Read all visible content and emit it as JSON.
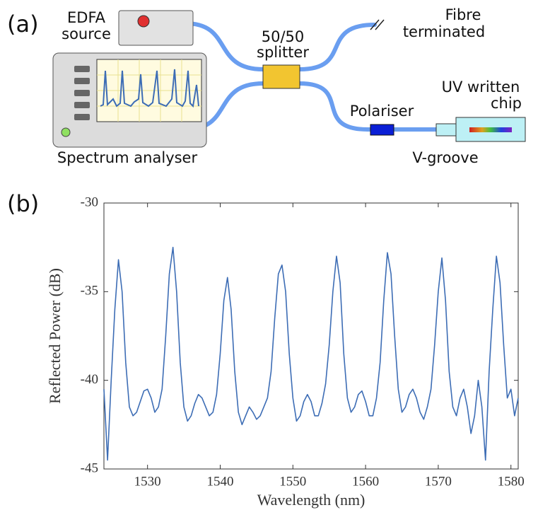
{
  "diagram": {
    "panel_label": "(a)",
    "edfa": [
      "EDFA",
      "source"
    ],
    "splitter": [
      "50/50",
      "splitter"
    ],
    "terminated": [
      "Fibre",
      "terminated"
    ],
    "chip": [
      "UV written",
      "chip"
    ],
    "polariser": "Polariser",
    "vgroove": "V-groove",
    "analyser": "Spectrum analyser"
  },
  "chart_data": {
    "type": "line",
    "panel_label": "(b)",
    "x_label": "Wavelength (nm)",
    "y_label": "Reflected Power (dB)",
    "color": "#3d6db5",
    "xlim": [
      1524,
      1581
    ],
    "ylim": [
      -45,
      -30
    ],
    "xticks": [
      1530,
      1540,
      1550,
      1560,
      1570,
      1580
    ],
    "yticks": [
      -30,
      -35,
      -40,
      -45
    ],
    "x": [
      1524,
      1524.5,
      1525,
      1525.5,
      1526,
      1526.5,
      1527,
      1527.5,
      1528,
      1528.5,
      1529,
      1529.5,
      1530,
      1530.5,
      1531,
      1531.5,
      1532,
      1532.5,
      1533,
      1533.5,
      1534,
      1534.5,
      1535,
      1535.5,
      1536,
      1536.5,
      1537,
      1537.5,
      1538,
      1538.5,
      1539,
      1539.5,
      1540,
      1540.5,
      1541,
      1541.5,
      1542,
      1542.5,
      1543,
      1543.5,
      1544,
      1544.5,
      1545,
      1545.5,
      1546,
      1546.5,
      1547,
      1547.5,
      1548,
      1548.5,
      1549,
      1549.5,
      1550,
      1550.5,
      1551,
      1551.5,
      1552,
      1552.5,
      1553,
      1553.5,
      1554,
      1554.5,
      1555,
      1555.5,
      1556,
      1556.5,
      1557,
      1557.5,
      1558,
      1558.5,
      1559,
      1559.5,
      1560,
      1560.5,
      1561,
      1561.5,
      1562,
      1562.5,
      1563,
      1563.5,
      1564,
      1564.5,
      1565,
      1565.5,
      1566,
      1566.5,
      1567,
      1567.5,
      1568,
      1568.5,
      1569,
      1569.5,
      1570,
      1570.5,
      1571,
      1571.5,
      1572,
      1572.5,
      1573,
      1573.5,
      1574,
      1574.5,
      1575,
      1575.5,
      1576,
      1576.5,
      1577,
      1577.5,
      1578,
      1578.5,
      1579,
      1579.5,
      1580,
      1580.5,
      1581
    ],
    "values": [
      -40.5,
      -44.5,
      -40,
      -36,
      -33.2,
      -35,
      -39,
      -41.5,
      -42,
      -41.8,
      -41.2,
      -40.6,
      -40.5,
      -41,
      -41.8,
      -41.5,
      -40.5,
      -37.5,
      -34,
      -32.5,
      -35,
      -39,
      -41.5,
      -42.3,
      -42,
      -41.3,
      -40.8,
      -41,
      -41.5,
      -42,
      -41.8,
      -40.8,
      -38.5,
      -35.5,
      -34.2,
      -36,
      -39.5,
      -41.8,
      -42.5,
      -42,
      -41.5,
      -41.8,
      -42.2,
      -42,
      -41.5,
      -41,
      -39.5,
      -36.5,
      -34,
      -33.5,
      -35,
      -38.5,
      -41,
      -42.3,
      -42,
      -41.2,
      -40.8,
      -41.2,
      -42,
      -42,
      -41.3,
      -40.2,
      -38,
      -35,
      -33,
      -34.5,
      -38.5,
      -41,
      -41.8,
      -41.5,
      -40.8,
      -40.6,
      -41.2,
      -42,
      -42,
      -41,
      -39,
      -35.5,
      -32.8,
      -34,
      -37.5,
      -40.5,
      -41.8,
      -41.5,
      -40.8,
      -40.5,
      -41,
      -41.8,
      -42.2,
      -41.5,
      -40.5,
      -38,
      -35,
      -33.1,
      -35.5,
      -39.5,
      -41.5,
      -42,
      -41,
      -40.5,
      -41.5,
      -43,
      -42,
      -40,
      -41.5,
      -44.5,
      -39.5,
      -36,
      -33,
      -34.5,
      -38,
      -41,
      -40.5,
      -42,
      -41
    ]
  }
}
